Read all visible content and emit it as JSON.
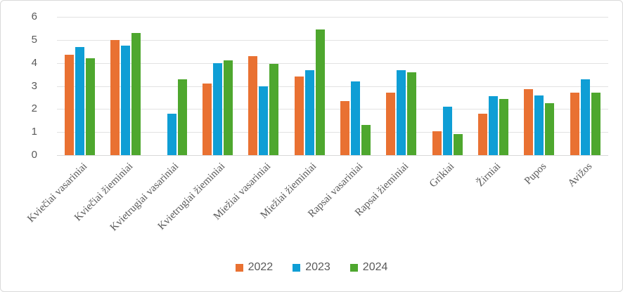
{
  "chart_data": {
    "type": "bar",
    "title": "",
    "xlabel": "",
    "ylabel": "",
    "ylim": [
      0,
      6
    ],
    "yticks": [
      0,
      1,
      2,
      3,
      4,
      5,
      6
    ],
    "grid": true,
    "legend_position": "bottom-center",
    "categories": [
      "Kviečiai vasariniai",
      "Kviečiai žieminiai",
      "Kvietrugiai vasariniai",
      "Kvietrugiai žieminiai",
      "Miežiai vasariniai",
      "Miežiai žieminiai",
      "Rapsai vasariniai",
      "Rapsai žieminiai",
      "Grikiai",
      "Žirniai",
      "Pupos",
      "Avižos"
    ],
    "series": [
      {
        "name": "2022",
        "color": "#E97132",
        "values": [
          4.35,
          5.0,
          null,
          3.1,
          4.3,
          3.4,
          2.35,
          2.7,
          1.05,
          1.8,
          2.85,
          2.7
        ]
      },
      {
        "name": "2023",
        "color": "#0F9ED5",
        "values": [
          4.7,
          4.75,
          1.8,
          4.0,
          3.0,
          3.7,
          3.2,
          3.7,
          2.1,
          2.55,
          2.6,
          3.3
        ]
      },
      {
        "name": "2024",
        "color": "#4EA72E",
        "values": [
          4.2,
          5.3,
          3.3,
          4.1,
          3.95,
          5.45,
          1.3,
          3.6,
          0.9,
          2.45,
          2.25,
          2.7
        ]
      }
    ],
    "style": {
      "grid_color": "#E2E2E2",
      "axis_line_color": "#D9D9D9",
      "tick_text_color": "#595959",
      "background": "#ffffff"
    }
  }
}
